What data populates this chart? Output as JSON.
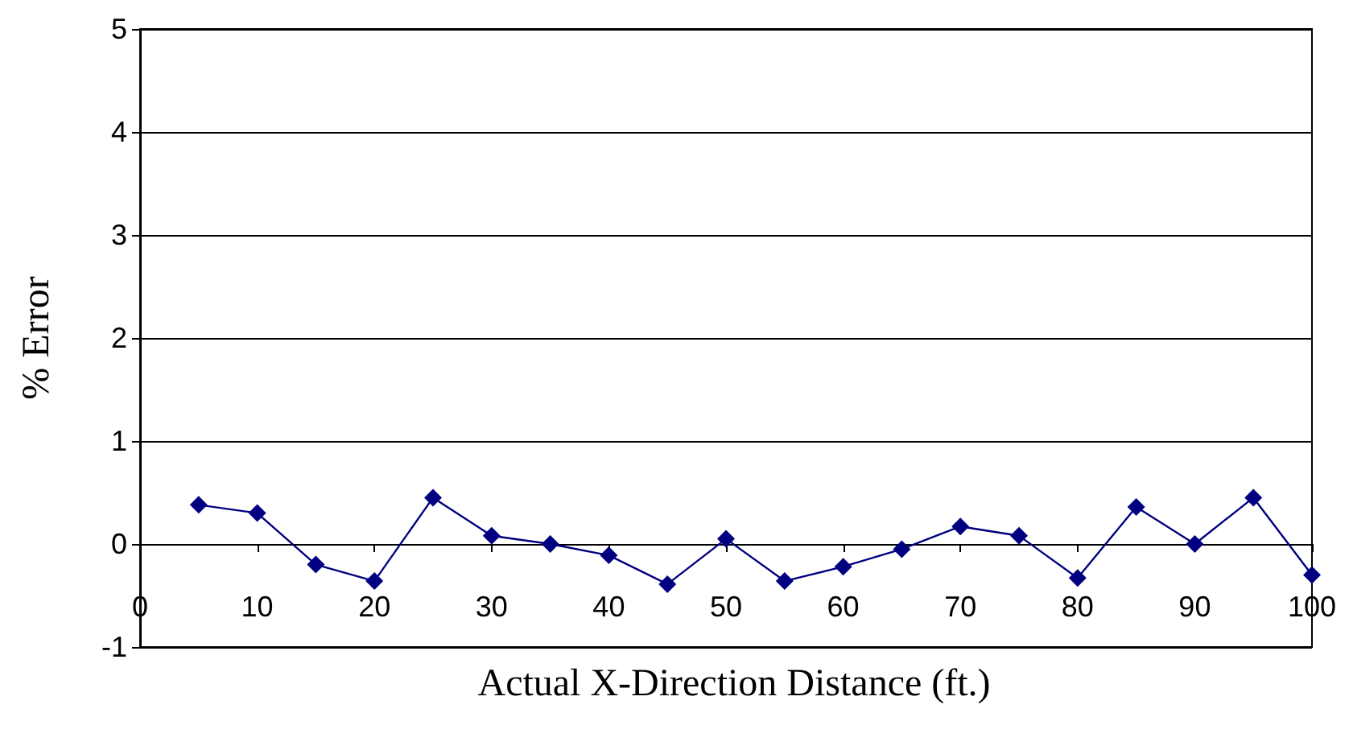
{
  "chart_data": {
    "type": "line",
    "xlabel": "Actual X-Direction Distance (ft.)",
    "ylabel": "% Error",
    "x": [
      5,
      10,
      15,
      20,
      25,
      30,
      35,
      40,
      45,
      50,
      55,
      60,
      65,
      70,
      75,
      80,
      85,
      90,
      95,
      100
    ],
    "series": [
      {
        "color": "#000080",
        "values": [
          0.38,
          0.3,
          -0.2,
          -0.36,
          0.45,
          0.08,
          0.0,
          -0.11,
          -0.39,
          0.05,
          -0.36,
          -0.22,
          -0.05,
          0.17,
          0.08,
          -0.33,
          0.36,
          0.0,
          0.45,
          -0.3
        ]
      }
    ],
    "xlim": [
      0,
      100
    ],
    "xticks": [
      0,
      10,
      20,
      30,
      40,
      50,
      60,
      70,
      80,
      90,
      100
    ],
    "ylim": [
      -1,
      5
    ],
    "yticks": [
      -1,
      0,
      1,
      2,
      3,
      4,
      5
    ],
    "grid": "y",
    "marker": "diamond",
    "line_style": "solid"
  }
}
